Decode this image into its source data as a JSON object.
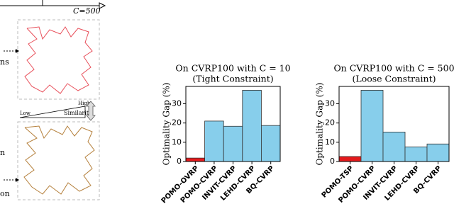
{
  "left_panel": {
    "capacity_label": "C=500",
    "label_top": "ns",
    "label_mid": "n",
    "label_bottom": "on",
    "low": "Low",
    "high": "High",
    "similarity": "Similarity"
  },
  "chart_data": [
    {
      "type": "bar",
      "title": "On CVRP100 with C = 10",
      "subtitle": "(Tight Constraint)",
      "ylabel": "Optimality Gap (%)",
      "categories": [
        "POMO-OVRP",
        "POMO-CVRP",
        "INVIT-CVRP",
        "LEHD-CVRP",
        "BQ-CVRP"
      ],
      "values": [
        1.8,
        21,
        18.3,
        37,
        18.7
      ],
      "colors": [
        "#e41a1c",
        "#87ceeb",
        "#87ceeb",
        "#87ceeb",
        "#87ceeb"
      ],
      "ylim": [
        0,
        39
      ],
      "yticks": [
        0,
        10,
        20,
        30
      ]
    },
    {
      "type": "bar",
      "title": "On CVRP100 with C = 500",
      "subtitle": "(Loose Constraint)",
      "ylabel": "Optimality Gap (%)",
      "categories": [
        "POMO-TSP",
        "POMO-CVRP",
        "INVIT-CVRP",
        "LEHD-CVRP",
        "BQ-CVRP"
      ],
      "values": [
        2.6,
        37,
        15.3,
        7.6,
        9.1
      ],
      "colors": [
        "#e41a1c",
        "#87ceeb",
        "#87ceeb",
        "#87ceeb",
        "#87ceeb"
      ],
      "ylim": [
        0,
        39
      ],
      "yticks": [
        0,
        10,
        20,
        30
      ]
    }
  ]
}
